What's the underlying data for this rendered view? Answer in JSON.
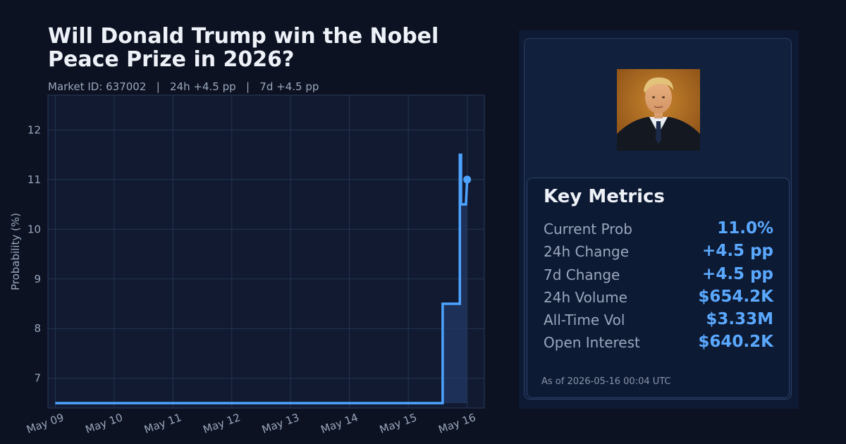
{
  "header": {
    "title": "Will Donald Trump win the Nobel Peace Prize in 2026?",
    "subtitle": "Market ID: 637002   |   24h +4.5 pp   |   7d +4.5 pp"
  },
  "colors": {
    "background": "#0c1222",
    "plot_background": "#111a30",
    "line": "#4da3ff",
    "fill": "#223a66",
    "metric_value": "#5aa9ff"
  },
  "chart_data": {
    "type": "line",
    "ylabel": "Probability (%)",
    "xlabel": "",
    "x_ticks": [
      "May 09",
      "May 10",
      "May 11",
      "May 12",
      "May 13",
      "May 14",
      "May 15",
      "May 16"
    ],
    "y_ticks": [
      7,
      8,
      9,
      10,
      11,
      12
    ],
    "xlim": [
      "2026-05-08T21:00",
      "2026-05-16T07:00"
    ],
    "ylim": [
      6.4,
      12.7
    ],
    "grid": true,
    "series": [
      {
        "x": [
          "2026-05-09T00:00",
          "2026-05-15T14:00",
          "2026-05-15T14:00",
          "2026-05-15T21:00",
          "2026-05-15T21:00",
          "2026-05-15T21:30",
          "2026-05-15T21:30",
          "2026-05-15T23:30",
          "2026-05-16T00:00"
        ],
        "values": [
          6.5,
          6.5,
          8.5,
          8.5,
          11.5,
          11.5,
          10.5,
          10.5,
          11.0
        ]
      }
    ]
  },
  "avatar": {
    "alt": "Donald Trump"
  },
  "metrics": {
    "title": "Key Metrics",
    "rows": [
      {
        "label": "Current Prob",
        "value": "11.0%"
      },
      {
        "label": "24h Change",
        "value": "+4.5 pp"
      },
      {
        "label": "7d Change",
        "value": "+4.5 pp"
      },
      {
        "label": "24h Volume",
        "value": "$654.2K"
      },
      {
        "label": "All-Time Vol",
        "value": "$3.33M"
      },
      {
        "label": "Open Interest",
        "value": "$640.2K"
      }
    ],
    "as_of": "As of 2026-05-16 00:04 UTC"
  }
}
